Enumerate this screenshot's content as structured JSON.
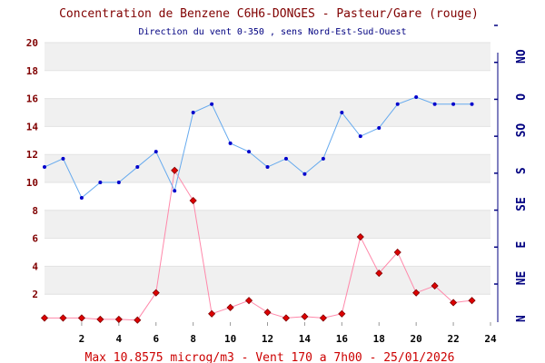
{
  "title": "Concentration de Benzene C6H6-DONGES - Pasteur/Gare (rouge)",
  "subtitle": "Direction du vent 0-350 , sens Nord-Est-Sud-Ouest",
  "footer": "Max 10.8575 microg/m3 - Vent 170  a 7h00 - 25/01/2026",
  "colors": {
    "benzene": "#dd0000",
    "benzene_line": "#ff88aa",
    "wind": "#0000cc",
    "wind_line": "#66aaee",
    "band": "#f0f0f0",
    "left_axis_text": "#800000",
    "right_axis_text": "#000080"
  },
  "chart_data": {
    "type": "line",
    "xlim": [
      0,
      24
    ],
    "ylim": [
      0,
      20
    ],
    "grid": true,
    "x_ticks": [
      "2",
      "4",
      "6",
      "8",
      "10",
      "12",
      "14",
      "16",
      "18",
      "20",
      "22",
      "24"
    ],
    "y_ticks": [
      "2",
      "4",
      "6",
      "8",
      "10",
      "12",
      "14",
      "16",
      "18",
      "20"
    ],
    "right_axis_labels": [
      "N",
      "NE",
      "E",
      "SE",
      "S",
      "SO",
      "O",
      "NO"
    ],
    "series": [
      {
        "key": "benzene",
        "x": [
          0,
          1,
          2,
          3,
          4,
          5,
          6,
          7,
          8,
          9,
          10,
          11,
          12,
          13,
          14,
          15,
          16,
          17,
          18,
          19,
          20,
          21,
          22,
          23
        ],
        "values": [
          0.3,
          0.3,
          0.3,
          0.2,
          0.2,
          0.15,
          2.1,
          10.86,
          8.7,
          0.6,
          1.05,
          1.55,
          0.7,
          0.3,
          0.4,
          0.3,
          0.6,
          6.1,
          3.5,
          5.0,
          2.1,
          2.6,
          1.4,
          1.55
        ]
      },
      {
        "key": "wind",
        "x": [
          0,
          1,
          2,
          3,
          4,
          5,
          6,
          7,
          8,
          9,
          10,
          11,
          12,
          13,
          14,
          15,
          16,
          17,
          18,
          19,
          20,
          21,
          22,
          23
        ],
        "values": [
          11.1,
          11.7,
          8.9,
          10.0,
          10.0,
          11.1,
          12.2,
          9.4,
          15.0,
          15.6,
          12.8,
          12.2,
          11.1,
          11.7,
          10.6,
          11.7,
          15.0,
          13.3,
          13.9,
          15.6,
          16.1,
          15.6,
          15.6,
          15.6
        ]
      }
    ]
  }
}
